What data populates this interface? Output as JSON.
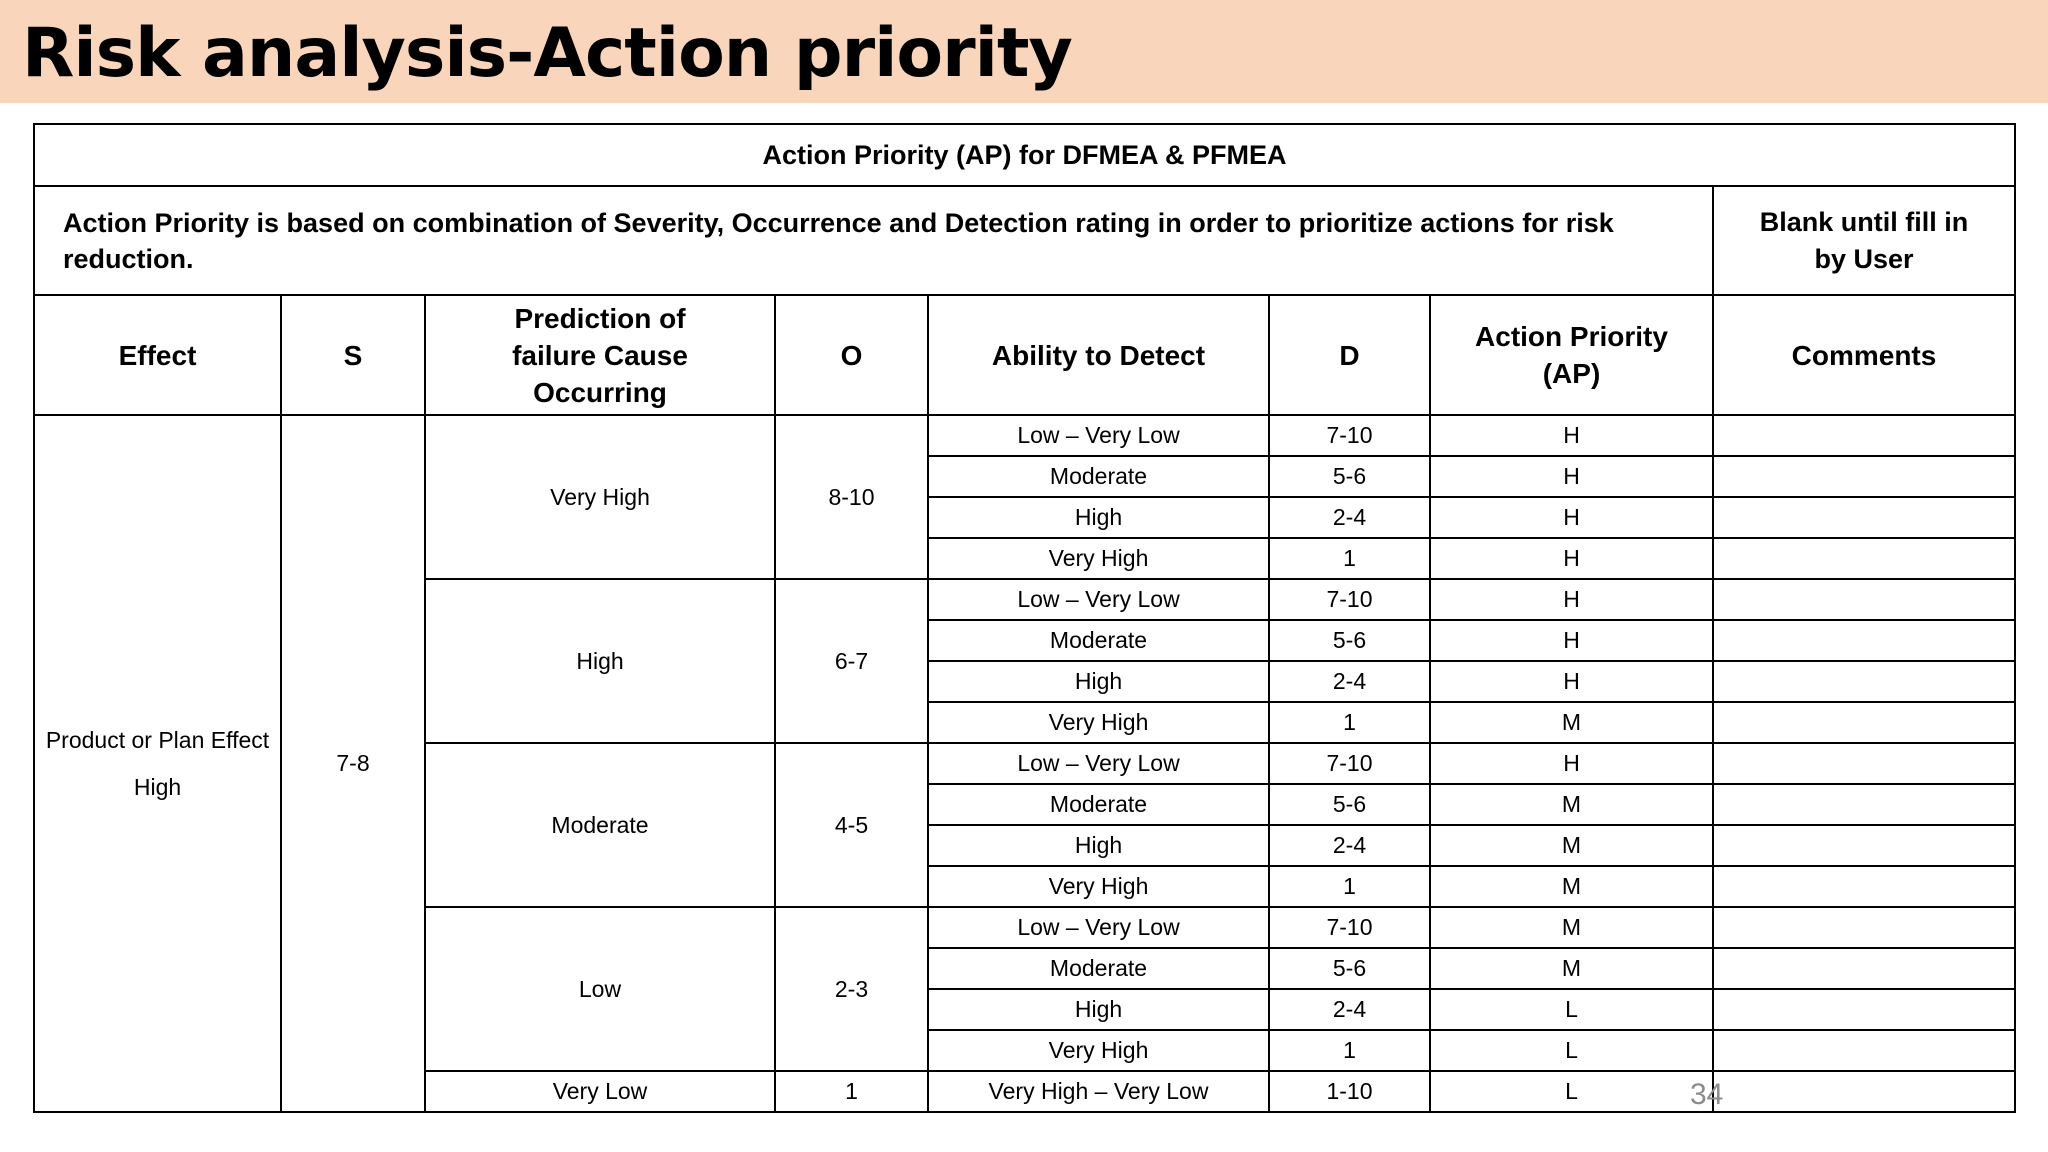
{
  "slide": {
    "title": "Risk analysis-Action priority",
    "page_number": "34"
  },
  "table": {
    "title": "Action Priority (AP) for DFMEA & PFMEA",
    "description": "Action Priority is based on combination of Severity, Occurrence and Detection rating in order to prioritize actions for risk reduction.",
    "blank_note": "Blank until fill in by User",
    "columns": {
      "effect": "Effect",
      "s": "S",
      "prediction": "Prediction of failure Cause Occurring",
      "o": "O",
      "detect": "Ability to Detect",
      "d": "D",
      "ap": "Action Priority (AP)",
      "comments": "Comments"
    },
    "effect": "Product or Plan Effect High",
    "severity": "7-8",
    "groups": [
      {
        "prediction": "Very High",
        "o": "8-10",
        "rows": [
          {
            "detect": "Low – Very Low",
            "d": "7-10",
            "ap": "H"
          },
          {
            "detect": "Moderate",
            "d": "5-6",
            "ap": "H"
          },
          {
            "detect": "High",
            "d": "2-4",
            "ap": "H"
          },
          {
            "detect": "Very High",
            "d": "1",
            "ap": "H"
          }
        ]
      },
      {
        "prediction": "High",
        "o": "6-7",
        "rows": [
          {
            "detect": "Low – Very Low",
            "d": "7-10",
            "ap": "H"
          },
          {
            "detect": "Moderate",
            "d": "5-6",
            "ap": "H"
          },
          {
            "detect": "High",
            "d": "2-4",
            "ap": "H"
          },
          {
            "detect": "Very High",
            "d": "1",
            "ap": "M"
          }
        ]
      },
      {
        "prediction": "Moderate",
        "o": "4-5",
        "rows": [
          {
            "detect": "Low – Very Low",
            "d": "7-10",
            "ap": "H"
          },
          {
            "detect": "Moderate",
            "d": "5-6",
            "ap": "M"
          },
          {
            "detect": "High",
            "d": "2-4",
            "ap": "M"
          },
          {
            "detect": "Very High",
            "d": "1",
            "ap": "M"
          }
        ]
      },
      {
        "prediction": "Low",
        "o": "2-3",
        "rows": [
          {
            "detect": "Low – Very Low",
            "d": "7-10",
            "ap": "M"
          },
          {
            "detect": "Moderate",
            "d": "5-6",
            "ap": "M"
          },
          {
            "detect": "High",
            "d": "2-4",
            "ap": "L"
          },
          {
            "detect": "Very High",
            "d": "1",
            "ap": "L"
          }
        ]
      },
      {
        "prediction": "Very Low",
        "o": "1",
        "rows": [
          {
            "detect": "Very High – Very Low",
            "d": "1-10",
            "ap": "L"
          }
        ]
      }
    ]
  }
}
